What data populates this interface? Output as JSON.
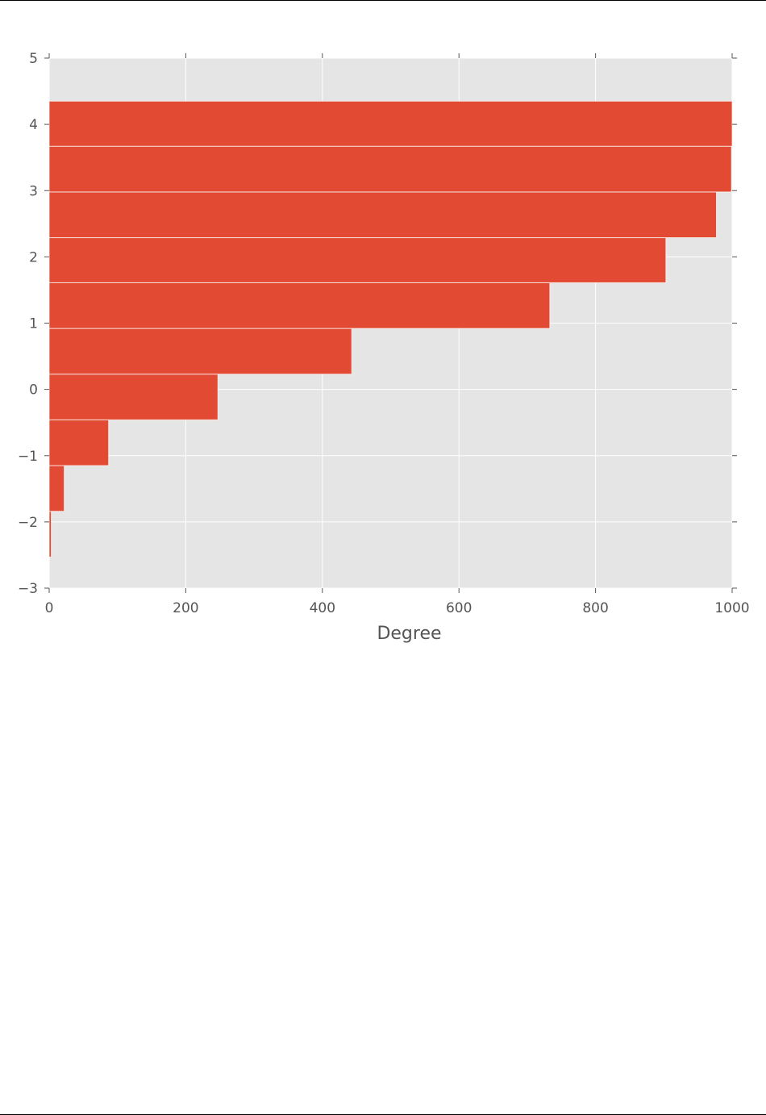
{
  "chart_data": {
    "type": "bar",
    "orientation": "horizontal",
    "title": "",
    "xlabel": "Degree",
    "ylabel": "",
    "xlim": [
      0,
      1000
    ],
    "ylim": [
      -3,
      5
    ],
    "xticks": [
      0,
      200,
      400,
      600,
      800,
      1000
    ],
    "yticks": [
      -3,
      -2,
      -1,
      0,
      1,
      2,
      3,
      4,
      5
    ],
    "ytick_labels": [
      "−3",
      "−2",
      "−1",
      "0",
      "1",
      "2",
      "3",
      "4",
      "5"
    ],
    "bin_edges": [
      -2.53,
      -1.84,
      -1.15,
      -0.46,
      0.23,
      0.92,
      1.61,
      2.29,
      2.98,
      3.67,
      4.35
    ],
    "values": [
      3,
      22,
      87,
      247,
      443,
      733,
      903,
      977,
      999,
      1000
    ],
    "grid": true,
    "colors": {
      "bar": "#E24A33",
      "background": "#E5E5E5",
      "grid": "#FFFFFF"
    }
  }
}
